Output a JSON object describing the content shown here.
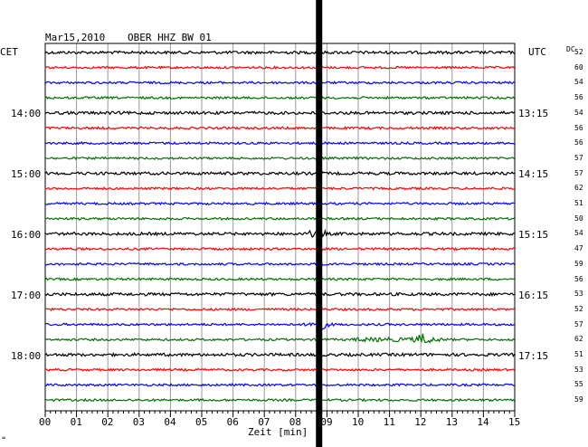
{
  "header": {
    "date": "Mar15,2010",
    "station": "OBER HHZ BW 01"
  },
  "left_axis": {
    "label": "CET",
    "hours": [
      "14:00",
      "15:00",
      "16:00",
      "17:00",
      "18:00"
    ]
  },
  "right_axis": {
    "label": "UTC",
    "hours": [
      "13:15",
      "14:15",
      "15:15",
      "16:15",
      "17:15"
    ],
    "dc_label": "DC"
  },
  "dc_values": [
    "52",
    "60",
    "54",
    "56",
    "54",
    "56",
    "56",
    "57",
    "57",
    "62",
    "51",
    "50",
    "54",
    "47",
    "59",
    "56",
    "53",
    "52",
    "57",
    "62",
    "51",
    "53",
    "55",
    "59"
  ],
  "minute_labels": [
    "00",
    "01",
    "02",
    "03",
    "04",
    "05",
    "06",
    "07",
    "08",
    "09",
    "10",
    "11",
    "12",
    "13",
    "14",
    "15"
  ],
  "x_axis_label": "Zeit [min]",
  "corner_mark": "≈",
  "trace_colors": [
    "#000000",
    "#ff0000",
    "#0000ff",
    "#007000"
  ],
  "chart_data": {
    "type": "line",
    "x_range_min": [
      0,
      15
    ],
    "trace_count": 24,
    "cursor_minute": 8.75
  }
}
